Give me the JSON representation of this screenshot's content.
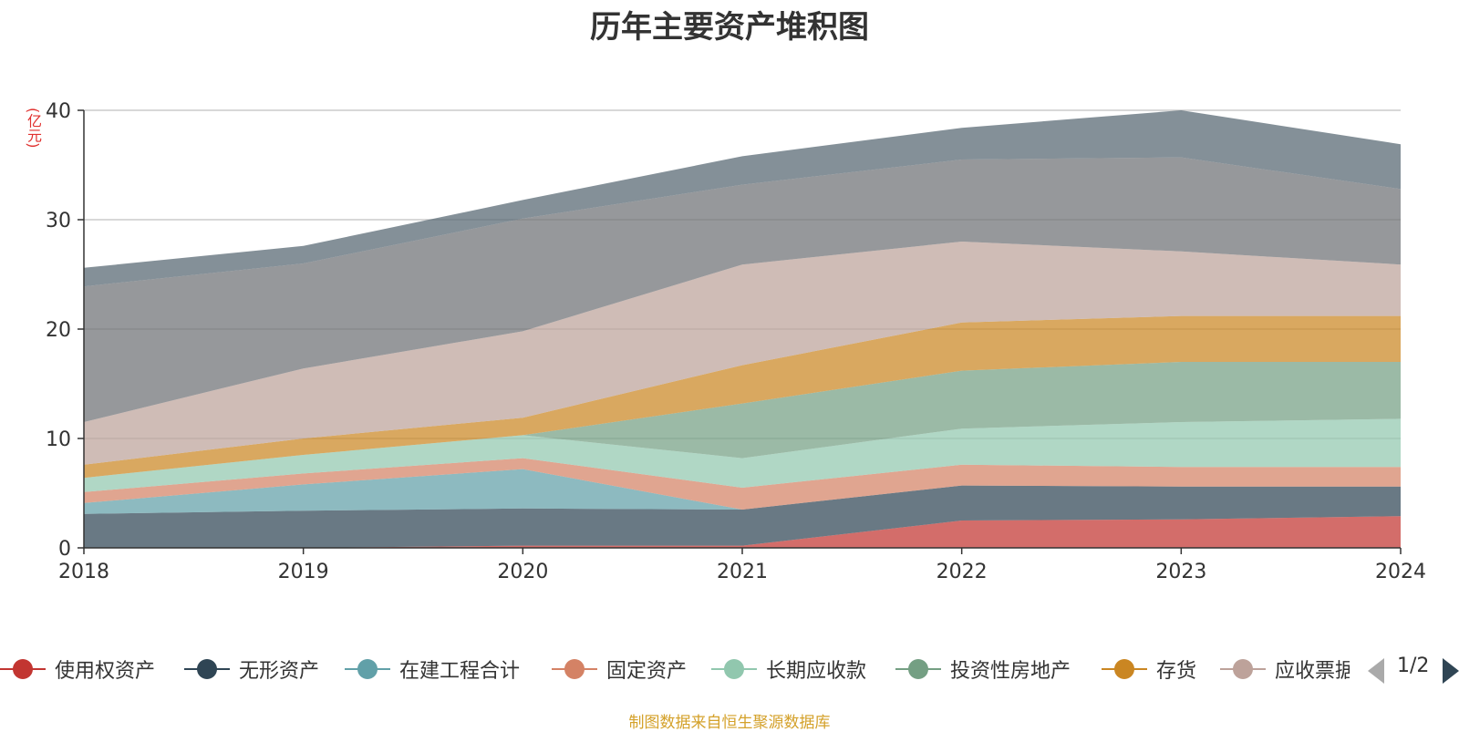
{
  "chart_data": {
    "type": "area",
    "title": "历年主要资产堆积图",
    "ylabel": "(亿元)",
    "ylim": [
      0,
      40
    ],
    "yticks": [
      0,
      10,
      20,
      30,
      40
    ],
    "grid": true,
    "legend_placement": "bottom",
    "categories": [
      "2018",
      "2019",
      "2020",
      "2021",
      "2022",
      "2023",
      "2024"
    ],
    "series": [
      {
        "name": "使用权资产",
        "color": "#c23531",
        "values": [
          0,
          0,
          0.2,
          0.2,
          2.5,
          2.6,
          2.9
        ]
      },
      {
        "name": "无形资产",
        "color": "#2f4554",
        "values": [
          3.1,
          3.4,
          3.4,
          3.3,
          3.2,
          3.0,
          2.7
        ]
      },
      {
        "name": "在建工程合计",
        "color": "#61a0a8",
        "values": [
          1.0,
          2.4,
          3.6,
          0,
          0,
          0,
          0
        ]
      },
      {
        "name": "固定资产",
        "color": "#d48265",
        "values": [
          1.0,
          1.0,
          1.0,
          2.0,
          1.9,
          1.8,
          1.8
        ]
      },
      {
        "name": "长期应收款",
        "color": "#91c7ae",
        "values": [
          1.3,
          1.7,
          2.1,
          2.7,
          3.3,
          4.1,
          4.4
        ]
      },
      {
        "name": "投资性房地产",
        "color": "#749f83",
        "values": [
          0,
          0,
          0,
          5.0,
          5.3,
          5.5,
          5.2
        ]
      },
      {
        "name": "存货",
        "color": "#ca8622",
        "values": [
          1.2,
          1.5,
          1.6,
          3.5,
          4.4,
          4.2,
          4.2
        ]
      },
      {
        "name": "应收票据及应收账款",
        "color": "#bda29a",
        "values": [
          3.9,
          6.4,
          7.9,
          9.2,
          7.4,
          5.9,
          4.7
        ]
      },
      {
        "name": "",
        "color": "#6e7074",
        "values": [
          12.4,
          9.6,
          10.3,
          7.3,
          7.5,
          8.6,
          6.9
        ]
      },
      {
        "name": "",
        "color": "#546570",
        "values": [
          1.7,
          1.6,
          1.7,
          2.6,
          2.9,
          4.3,
          4.1
        ]
      }
    ]
  },
  "legend": {
    "visible_count": 8,
    "pager_text": "1/2"
  },
  "footer": {
    "source": "制图数据来自恒生聚源数据库"
  }
}
